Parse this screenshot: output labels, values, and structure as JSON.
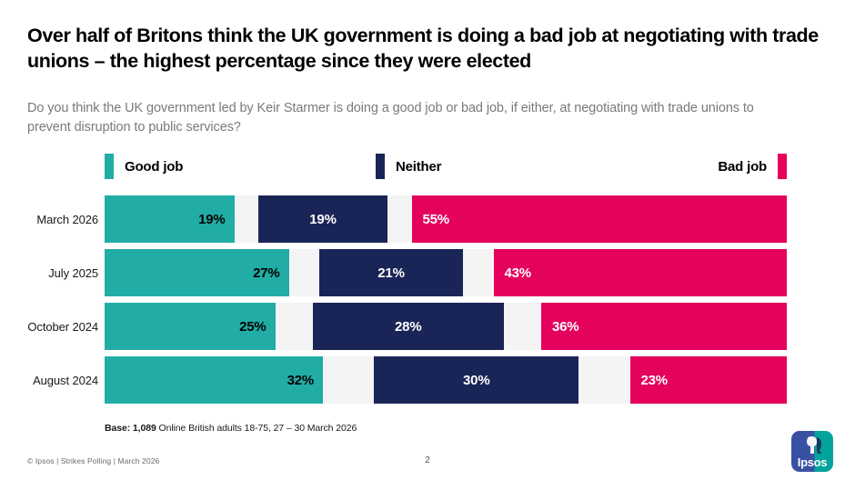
{
  "title": "Over half of Britons think the UK government is doing a bad job at negotiating with trade unions – the highest percentage since they were elected",
  "subtitle": "Do you think the UK government led by Keir Starmer is doing a good job or bad job, if either, at negotiating with trade unions to prevent disruption to public services?",
  "chart_data": {
    "type": "bar",
    "stacked": true,
    "orientation": "horizontal",
    "categories": [
      "March 2026",
      "July 2025",
      "October 2024",
      "August 2024"
    ],
    "series": [
      {
        "name": "Good job",
        "color": "#21ada6",
        "values": [
          19,
          27,
          25,
          32
        ]
      },
      {
        "name": "Neither",
        "color": "#1a2557",
        "values": [
          19,
          21,
          28,
          30
        ]
      },
      {
        "name": "Bad job",
        "color": "#e4025d",
        "values": [
          55,
          43,
          36,
          23
        ]
      }
    ],
    "value_suffix": "%",
    "axis_range": [
      0,
      100
    ],
    "track_background": "#f4f4f4",
    "legend_position": "top",
    "notes": "Remaining share per row (don't know) rendered as equal gaps around the Neither segment"
  },
  "base_note": {
    "bold": "Base: 1,089",
    "rest": " Online British adults 18-75, 27 – 30 March 2026"
  },
  "footer": {
    "copyright": "© Ipsos | Strikes Polling | March 2026",
    "page": "2"
  },
  "logo": {
    "text": "Ipsos"
  }
}
